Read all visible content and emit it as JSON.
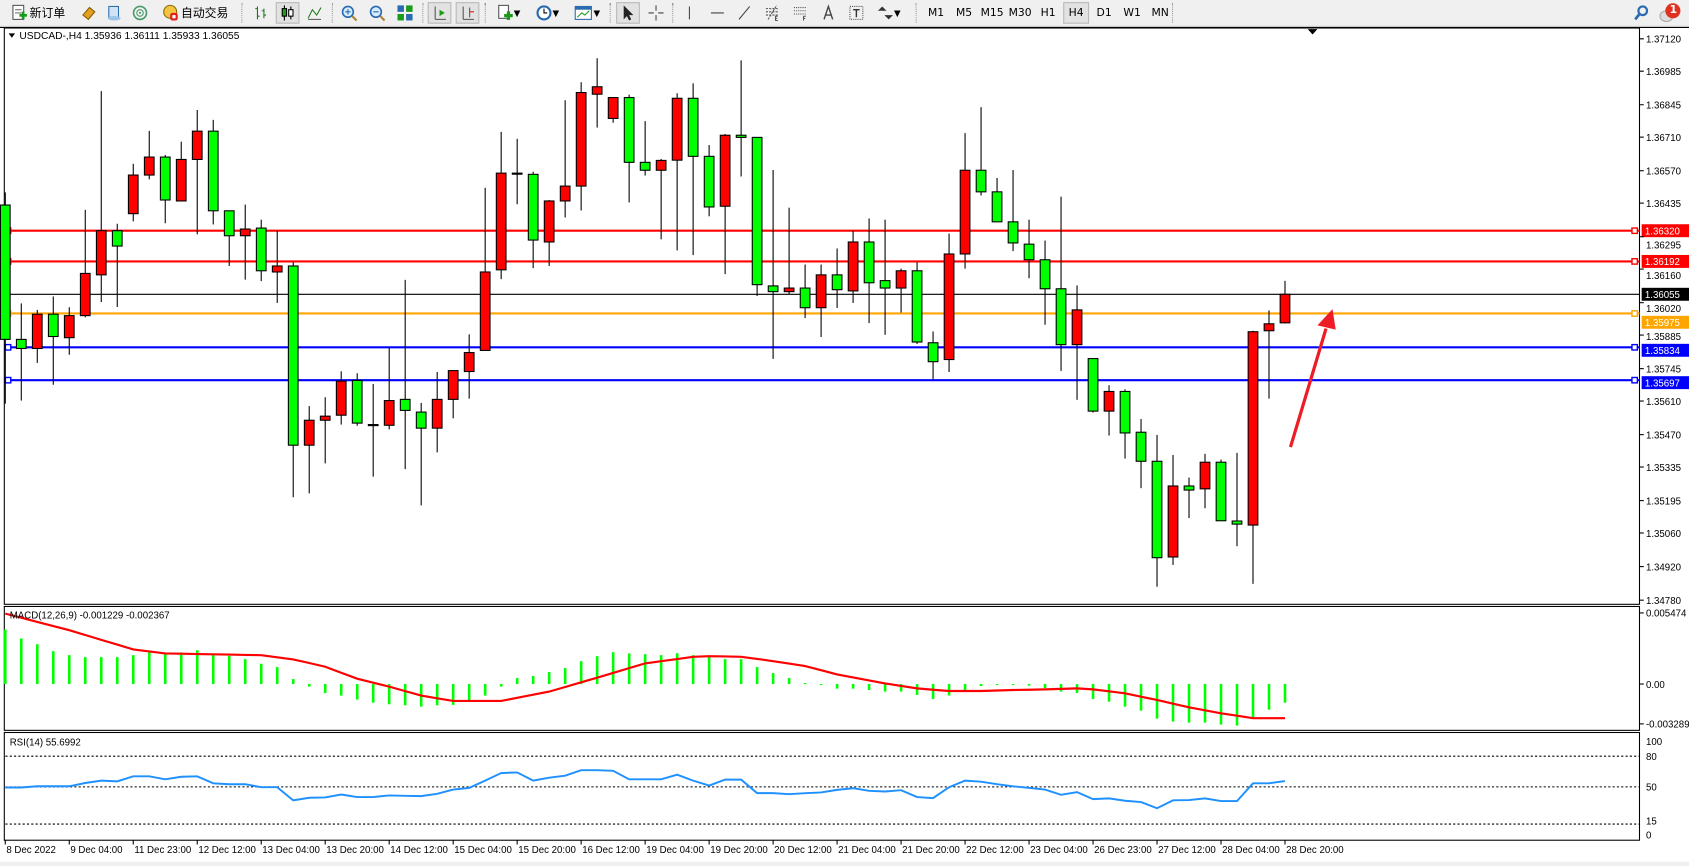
{
  "toolbar": {
    "new_order_label": "新订单",
    "auto_trading_label": "自动交易",
    "timeframes": [
      "M1",
      "M5",
      "M15",
      "M30",
      "H1",
      "H4",
      "D1",
      "W1",
      "MN"
    ],
    "active_timeframe": "H4",
    "notification_count": "1",
    "icons": [
      "new-order-icon",
      "market-watch-icon",
      "navigator-icon",
      "signals-icon",
      "auto-trading-icon",
      "bar-chart-icon",
      "candlestick-icon",
      "line-chart-icon",
      "zoom-in-icon",
      "zoom-out-icon",
      "tile-windows-icon",
      "auto-scroll-icon",
      "chart-shift-icon",
      "indicators-icon",
      "periods-icon",
      "templates-icon",
      "cursor-icon",
      "crosshair-icon",
      "vertical-line-icon",
      "horizontal-line-icon",
      "trendline-icon",
      "fibonacci-icon",
      "fibo-fan-icon",
      "text-icon",
      "text-label-icon",
      "arrows-icon",
      "search-icon",
      "notification-icon"
    ]
  },
  "chart": {
    "header": "USDCAD-,H4  1.35936 1.36111 1.35933 1.36055",
    "colors": {
      "bull": "#FF0000",
      "bear": "#00FF00",
      "outline": "#000000",
      "background": "#FFFFFF"
    }
  },
  "chart_data": [
    {
      "type": "candlestick",
      "symbol": "USDCAD-",
      "timeframe": "H4",
      "ohlc_order": [
        "open",
        "high",
        "low",
        "close"
      ],
      "ohlc": [
        [
          1.36427,
          1.3648,
          1.35599,
          1.35867
        ],
        [
          1.35867,
          1.36017,
          1.35612,
          1.35829
        ],
        [
          1.35829,
          1.3599,
          1.35769,
          1.35972
        ],
        [
          1.35972,
          1.36046,
          1.35678,
          1.35879
        ],
        [
          1.35874,
          1.36001,
          1.35803,
          1.35966
        ],
        [
          1.35966,
          1.36407,
          1.35959,
          1.36142
        ],
        [
          1.36136,
          1.36902,
          1.36023,
          1.3632
        ],
        [
          1.3632,
          1.36349,
          1.36002,
          1.36256
        ],
        [
          1.36391,
          1.36599,
          1.36359,
          1.36552
        ],
        [
          1.36552,
          1.36736,
          1.36534,
          1.36627
        ],
        [
          1.36627,
          1.36636,
          1.36351,
          1.36448
        ],
        [
          1.36444,
          1.36691,
          1.36444,
          1.36617
        ],
        [
          1.36617,
          1.36823,
          1.36305,
          1.36735
        ],
        [
          1.36735,
          1.36782,
          1.36346,
          1.36403
        ],
        [
          1.36403,
          1.36403,
          1.36173,
          1.36299
        ],
        [
          1.36299,
          1.36429,
          1.36116,
          1.36327
        ],
        [
          1.36331,
          1.36366,
          1.3611,
          1.36153
        ],
        [
          1.36148,
          1.3632,
          1.36019,
          1.36173
        ],
        [
          1.36173,
          1.36188,
          1.35209,
          1.35426
        ],
        [
          1.35426,
          1.35589,
          1.35225,
          1.3553
        ],
        [
          1.3553,
          1.35626,
          1.3535,
          1.35547
        ],
        [
          1.35551,
          1.35734,
          1.35512,
          1.35693
        ],
        [
          1.35696,
          1.35726,
          1.35507,
          1.35518
        ],
        [
          1.35512,
          1.35681,
          1.35295,
          1.3551
        ],
        [
          1.35509,
          1.35833,
          1.35492,
          1.35612
        ],
        [
          1.35617,
          1.36115,
          1.35326,
          1.35571
        ],
        [
          1.35564,
          1.35602,
          1.35175,
          1.35497
        ],
        [
          1.35497,
          1.35731,
          1.35396,
          1.35617
        ],
        [
          1.35617,
          1.35737,
          1.35538,
          1.35737
        ],
        [
          1.35733,
          1.35888,
          1.3562,
          1.35812
        ],
        [
          1.35821,
          1.36499,
          1.35821,
          1.36148
        ],
        [
          1.36157,
          1.36732,
          1.36118,
          1.3656
        ],
        [
          1.3656,
          1.36703,
          1.3643,
          1.36558
        ],
        [
          1.36555,
          1.36566,
          1.36164,
          1.36281
        ],
        [
          1.36273,
          1.36448,
          1.36173,
          1.36444
        ],
        [
          1.36444,
          1.36864,
          1.36375,
          1.36506
        ],
        [
          1.36506,
          1.36939,
          1.36404,
          1.36896
        ],
        [
          1.36889,
          1.37039,
          1.3675,
          1.3692
        ],
        [
          1.36788,
          1.36875,
          1.3677,
          1.36875
        ],
        [
          1.36875,
          1.36887,
          1.36438,
          1.36605
        ],
        [
          1.36605,
          1.36777,
          1.3655,
          1.36572
        ],
        [
          1.36572,
          1.36619,
          1.36284,
          1.36613
        ],
        [
          1.36614,
          1.36893,
          1.36238,
          1.36872
        ],
        [
          1.36872,
          1.36934,
          1.36218,
          1.3663
        ],
        [
          1.3663,
          1.36677,
          1.3638,
          1.36419
        ],
        [
          1.36422,
          1.36723,
          1.36139,
          1.36718
        ],
        [
          1.36718,
          1.3703,
          1.36546,
          1.36709
        ],
        [
          1.36709,
          1.36709,
          1.36048,
          1.36095
        ],
        [
          1.3609,
          1.36573,
          1.35786,
          1.36066
        ],
        [
          1.36066,
          1.36416,
          1.36055,
          1.36081
        ],
        [
          1.36081,
          1.36179,
          1.35956,
          1.35999
        ],
        [
          1.35999,
          1.36179,
          1.35877,
          1.36136
        ],
        [
          1.36136,
          1.36246,
          1.35998,
          1.36074
        ],
        [
          1.36069,
          1.3632,
          1.36019,
          1.36273
        ],
        [
          1.36273,
          1.36371,
          1.35935,
          1.36103
        ],
        [
          1.36112,
          1.36366,
          1.35886,
          1.36081
        ],
        [
          1.36081,
          1.36162,
          1.35979,
          1.36153
        ],
        [
          1.36153,
          1.36188,
          1.35848,
          1.35856
        ],
        [
          1.35853,
          1.359,
          1.35701,
          1.35774
        ],
        [
          1.35783,
          1.36308,
          1.35731,
          1.36223
        ],
        [
          1.36223,
          1.36727,
          1.36162,
          1.36572
        ],
        [
          1.36572,
          1.36835,
          1.36467,
          1.36482
        ],
        [
          1.36482,
          1.3654,
          1.36357,
          1.36357
        ],
        [
          1.36357,
          1.36573,
          1.36235,
          1.36269
        ],
        [
          1.36264,
          1.36366,
          1.36122,
          1.36199
        ],
        [
          1.36199,
          1.36279,
          1.35928,
          1.36078
        ],
        [
          1.36078,
          1.36462,
          1.35736,
          1.35845
        ],
        [
          1.35845,
          1.36092,
          1.35615,
          1.3599
        ],
        [
          1.35787,
          1.35787,
          1.35562,
          1.35568
        ],
        [
          1.35568,
          1.35676,
          1.35466,
          1.3565
        ],
        [
          1.3565,
          1.35659,
          1.3537,
          1.35477
        ],
        [
          1.3548,
          1.35535,
          1.35247,
          1.35359
        ],
        [
          1.35359,
          1.35469,
          1.34836,
          1.34957
        ],
        [
          1.3496,
          1.35385,
          1.34927,
          1.35256
        ],
        [
          1.35256,
          1.35291,
          1.35122,
          1.35239
        ],
        [
          1.35244,
          1.3539,
          1.35163,
          1.35355
        ],
        [
          1.35355,
          1.35366,
          1.35111,
          1.35111
        ],
        [
          1.3511,
          1.35394,
          1.35005,
          1.35097
        ],
        [
          1.35093,
          1.35903,
          1.34848,
          1.35899
        ],
        [
          1.35903,
          1.35988,
          1.3562,
          1.35932
        ],
        [
          1.35936,
          1.36111,
          1.35933,
          1.36055
        ]
      ],
      "y_axis_labels": [
        "1.37120",
        "1.36985",
        "1.36845",
        "1.36710",
        "1.36570",
        "1.36435",
        "1.36295",
        "1.36160",
        "1.36020",
        "1.35885",
        "1.35745",
        "1.35610",
        "1.35470",
        "1.35335",
        "1.35195",
        "1.35060",
        "1.34920",
        "1.34780"
      ],
      "ylim": [
        1.3478,
        1.3712
      ],
      "x_axis_labels": [
        "8 Dec 2022",
        "9 Dec 04:00",
        "11 Dec 23:00",
        "12 Dec 12:00",
        "13 Dec 04:00",
        "13 Dec 20:00",
        "14 Dec 12:00",
        "15 Dec 04:00",
        "15 Dec 20:00",
        "16 Dec 12:00",
        "19 Dec 04:00",
        "19 Dec 20:00",
        "20 Dec 12:00",
        "21 Dec 04:00",
        "21 Dec 20:00",
        "22 Dec 12:00",
        "23 Dec 04:00",
        "26 Dec 23:00",
        "27 Dec 12:00",
        "28 Dec 04:00",
        "28 Dec 20:00"
      ],
      "x_label_every_n_bars": 4,
      "horizontal_lines": [
        {
          "price": "1.36320",
          "color": "#FF0000"
        },
        {
          "price": "1.36192",
          "color": "#FF0000"
        },
        {
          "price": "1.36055",
          "color": "#000000"
        },
        {
          "price": "1.35975",
          "color": "#FFA500"
        },
        {
          "price": "1.35834",
          "color": "#0000FF"
        },
        {
          "price": "1.35697",
          "color": "#0000FF"
        }
      ],
      "annotation": {
        "type": "arrow",
        "color": "#EE1C25",
        "direction": "up"
      }
    },
    {
      "type": "bar+line",
      "label": "MACD(12,26,9) -0.001229 -0.002367",
      "y_axis_labels": [
        "0.005474",
        "0.00",
        "-0.003289"
      ],
      "ylim": [
        -0.003289,
        0.005474
      ],
      "histogram_color": "#00FF00",
      "signal_color": "#FF0000",
      "histogram": [
        0.00438,
        0.00366,
        0.0032,
        0.00264,
        0.00232,
        0.00216,
        0.00216,
        0.00216,
        0.00232,
        0.00254,
        0.00246,
        0.00254,
        0.00272,
        0.00246,
        0.00227,
        0.002,
        0.00163,
        0.00136,
        0.0004,
        -0.00021,
        -0.00072,
        -0.00093,
        -0.00125,
        -0.0015,
        -0.00163,
        -0.00171,
        -0.00182,
        -0.00171,
        -0.00168,
        -0.00136,
        -0.00093,
        -0.00021,
        0.00048,
        0.00064,
        0.00096,
        0.00128,
        0.00184,
        0.00224,
        0.00256,
        0.00246,
        0.0024,
        0.00232,
        0.00248,
        0.00232,
        0.00219,
        0.002,
        0.002,
        0.00136,
        0.00088,
        0.00048,
        8e-05,
        -3e-05,
        -0.00037,
        -0.00037,
        -0.00048,
        -0.00061,
        -0.00061,
        -0.00088,
        -0.0012,
        -0.00093,
        -0.00053,
        -0.00016,
        -5e-05,
        -5e-05,
        -0.00013,
        -0.00032,
        -0.00061,
        -0.00072,
        -0.0012,
        -0.00142,
        -0.00182,
        -0.00214,
        -0.00278,
        -0.00302,
        -0.0031,
        -0.0031,
        -0.00326,
        -0.00334,
        -0.00267,
        -0.00206,
        -0.0015
      ],
      "signal": [
        0.00566,
        0.00533,
        0.00499,
        0.00466,
        0.00433,
        0.00394,
        0.00355,
        0.00317,
        0.00278,
        0.00262,
        0.00246,
        0.00244,
        0.00241,
        0.00239,
        0.00237,
        0.00234,
        0.00232,
        0.00215,
        0.00198,
        0.00169,
        0.00139,
        0.00091,
        0.00043,
        0.00011,
        -0.00021,
        -0.00057,
        -0.00093,
        -0.00115,
        -0.00136,
        -0.00136,
        -0.00136,
        -0.00136,
        -0.00111,
        -0.00086,
        -0.00061,
        -0.00024,
        0.00014,
        0.00051,
        0.00089,
        0.00128,
        0.00166,
        0.00184,
        0.00201,
        0.00219,
        0.00224,
        0.00222,
        0.00219,
        0.00202,
        0.00184,
        0.00164,
        0.00144,
        0.00111,
        0.00077,
        0.00053,
        0.00029,
        5e-05,
        -0.00015,
        -0.00035,
        -0.00046,
        -0.00056,
        -0.00056,
        -0.00056,
        -0.00052,
        -0.00048,
        -0.00046,
        -0.00043,
        -0.00039,
        -0.00035,
        -0.00043,
        -0.00059,
        -0.00075,
        -0.00102,
        -0.00128,
        -0.00158,
        -0.00187,
        -0.00211,
        -0.00235,
        -0.00255,
        -0.00275,
        -0.00275,
        -0.00275
      ]
    },
    {
      "type": "line",
      "label": "RSI(14) 55.6992",
      "y_axis_labels": [
        "100",
        "80",
        "50",
        "15",
        "0"
      ],
      "levels": [
        80,
        50,
        15
      ],
      "ylim": [
        0,
        100
      ],
      "color": "#1E90FF",
      "values": [
        49.4,
        49.4,
        50.6,
        50.6,
        50.6,
        53.8,
        56.1,
        55.4,
        60.3,
        60.3,
        57.4,
        59.9,
        60.3,
        53.5,
        52.6,
        52.6,
        49.7,
        49.7,
        36.9,
        39.4,
        39.7,
        42.6,
        40.1,
        40.1,
        41.7,
        41.3,
        41.0,
        43.3,
        47.4,
        49.0,
        56.1,
        63.5,
        64.1,
        56.1,
        59.0,
        60.9,
        66.3,
        66.3,
        65.7,
        57.4,
        57.4,
        57.4,
        61.9,
        56.1,
        51.3,
        57.1,
        57.1,
        43.9,
        43.9,
        42.9,
        43.9,
        44.6,
        47.1,
        48.7,
        46.2,
        45.5,
        46.8,
        40.1,
        39.1,
        49.7,
        56.1,
        55.1,
        52.6,
        50.6,
        49.0,
        47.4,
        42.3,
        44.9,
        38.1,
        38.8,
        36.5,
        35.2,
        29.2,
        36.9,
        37.2,
        38.8,
        36.2,
        36.2,
        53.5,
        53.5,
        55.7
      ]
    }
  ]
}
